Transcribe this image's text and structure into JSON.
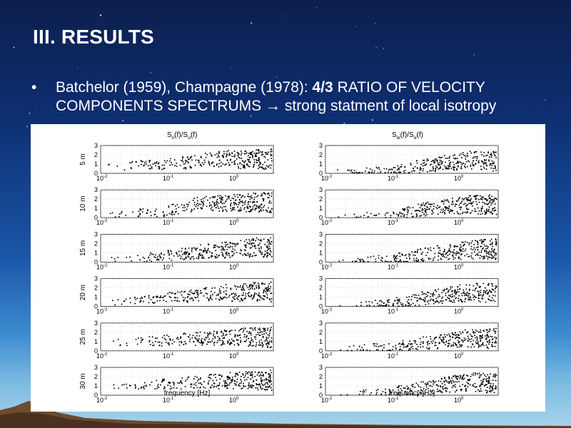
{
  "slide": {
    "title": "III. RESULTS",
    "bullet_symbol": "•",
    "bullet_part1": "Batchelor (1959), Champagne (1978): ",
    "bullet_bold": "4/3",
    "bullet_part2": " RATIO OF VELOCITY COMPONENTS  SPECTRUMS → strong statment of local isotropy"
  },
  "colors": {
    "sky_top": "#0b1f4d",
    "sky_bottom": "#a7d3ea",
    "ground": "#6e4a2e",
    "text": "#ffffff",
    "figure_bg": "#ffffff",
    "points": "#000000",
    "grid": "#c8c8c8"
  },
  "chart_data": [
    {
      "type": "scatter",
      "title_main": "S",
      "title_sub1": "v",
      "title_mid": "(f)/S",
      "title_sub2": "u",
      "title_end": "(f)",
      "xlabel": "frequency [Hz]",
      "xscale": "log",
      "xlim": [
        0.01,
        4
      ],
      "ylim": [
        0,
        3
      ],
      "y_ticks": [
        "0",
        "1",
        "2",
        "3"
      ],
      "x_tick_base": "10",
      "x_tick_exps": [
        "-2",
        "-1",
        "0"
      ],
      "grid": true,
      "rows": [
        "5 m",
        "10 m",
        "15 m",
        "20 m",
        "25 m",
        "30 m"
      ],
      "trend_note": "ratio rises from about 0.3 at 0.01 Hz toward ~1.3 (scattered 0–3) above 1 Hz",
      "series": [
        {
          "name": "5 m",
          "x": [
            0.015,
            0.02,
            0.03,
            0.05,
            0.08,
            0.1,
            0.15,
            0.2,
            0.3,
            0.5,
            0.8,
            1,
            1.5,
            2,
            3
          ],
          "y": [
            0.8,
            0.6,
            0.9,
            1.0,
            0.7,
            1.0,
            1.2,
            1.1,
            1.4,
            1.5,
            1.6,
            1.5,
            1.4,
            1.6,
            1.5
          ]
        },
        {
          "name": "10 m",
          "x": [
            0.015,
            0.02,
            0.03,
            0.05,
            0.08,
            0.1,
            0.15,
            0.2,
            0.3,
            0.5,
            0.8,
            1,
            1.5,
            2,
            3
          ],
          "y": [
            0.3,
            0.4,
            0.5,
            0.6,
            0.5,
            0.8,
            1.0,
            1.2,
            1.5,
            1.6,
            1.5,
            1.6,
            1.5,
            1.7,
            1.6
          ]
        },
        {
          "name": "15 m",
          "x": [
            0.015,
            0.02,
            0.03,
            0.05,
            0.08,
            0.1,
            0.15,
            0.2,
            0.3,
            0.5,
            0.8,
            1,
            1.5,
            2,
            3
          ],
          "y": [
            0.3,
            0.4,
            0.3,
            0.5,
            0.6,
            0.7,
            0.8,
            0.9,
            1.1,
            1.2,
            1.3,
            1.4,
            1.5,
            1.6,
            1.6
          ]
        },
        {
          "name": "20 m",
          "x": [
            0.015,
            0.02,
            0.03,
            0.05,
            0.08,
            0.1,
            0.15,
            0.2,
            0.3,
            0.5,
            0.8,
            1,
            1.5,
            2,
            3
          ],
          "y": [
            0.4,
            0.5,
            0.6,
            0.7,
            0.8,
            0.9,
            1.0,
            1.1,
            1.3,
            1.4,
            1.5,
            1.4,
            1.5,
            1.6,
            1.6
          ]
        },
        {
          "name": "25 m",
          "x": [
            0.015,
            0.02,
            0.03,
            0.05,
            0.08,
            0.1,
            0.15,
            0.2,
            0.3,
            0.5,
            0.8,
            1,
            1.5,
            2,
            3
          ],
          "y": [
            1.4,
            0.8,
            0.9,
            1.1,
            1.0,
            1.2,
            1.2,
            1.3,
            1.3,
            1.4,
            1.5,
            1.4,
            1.5,
            1.5,
            1.4
          ]
        },
        {
          "name": "30 m",
          "x": [
            0.015,
            0.02,
            0.03,
            0.05,
            0.08,
            0.1,
            0.15,
            0.2,
            0.3,
            0.5,
            0.8,
            1,
            1.5,
            2,
            3
          ],
          "y": [
            1.0,
            0.9,
            1.0,
            1.1,
            1.2,
            1.2,
            1.3,
            1.3,
            1.4,
            1.5,
            1.5,
            1.6,
            1.6,
            1.5,
            1.6
          ]
        }
      ]
    },
    {
      "type": "scatter",
      "title_main": "S",
      "title_sub1": "w",
      "title_mid": "(f)/S",
      "title_sub2": "u",
      "title_end": "(f)",
      "xlabel": "frequency [Hz]",
      "xscale": "log",
      "xlim": [
        0.01,
        4
      ],
      "ylim": [
        0,
        3
      ],
      "y_ticks": [
        "0",
        "1",
        "2",
        "3"
      ],
      "x_tick_base": "10",
      "x_tick_exps": [
        "-2",
        "-1",
        "0"
      ],
      "grid": true,
      "rows": [
        "5 m",
        "10 m",
        "15 m",
        "20 m",
        "25 m",
        "30 m"
      ],
      "trend_note": "ratio near 0.1 at low frequency rising to ~1.3 above 1 Hz",
      "series": [
        {
          "name": "5 m",
          "x": [
            0.015,
            0.02,
            0.03,
            0.05,
            0.08,
            0.1,
            0.15,
            0.2,
            0.3,
            0.5,
            0.8,
            1,
            1.5,
            2,
            3
          ],
          "y": [
            0.1,
            0.1,
            0.1,
            0.2,
            0.2,
            0.3,
            0.4,
            0.6,
            0.8,
            1.0,
            1.2,
            1.3,
            1.4,
            1.4,
            1.3
          ]
        },
        {
          "name": "10 m",
          "x": [
            0.015,
            0.02,
            0.03,
            0.05,
            0.08,
            0.1,
            0.15,
            0.2,
            0.3,
            0.5,
            0.8,
            1,
            1.5,
            2,
            3
          ],
          "y": [
            0.1,
            0.1,
            0.2,
            0.2,
            0.3,
            0.3,
            0.5,
            0.7,
            0.9,
            1.1,
            1.2,
            1.3,
            1.4,
            1.4,
            1.4
          ]
        },
        {
          "name": "15 m",
          "x": [
            0.015,
            0.02,
            0.03,
            0.05,
            0.08,
            0.1,
            0.15,
            0.2,
            0.3,
            0.5,
            0.8,
            1,
            1.5,
            2,
            3
          ],
          "y": [
            0.1,
            0.1,
            0.1,
            0.2,
            0.2,
            0.3,
            0.4,
            0.6,
            0.8,
            1.0,
            1.1,
            1.2,
            1.3,
            1.4,
            1.4
          ]
        },
        {
          "name": "20 m",
          "x": [
            0.015,
            0.02,
            0.03,
            0.05,
            0.08,
            0.1,
            0.15,
            0.2,
            0.3,
            0.5,
            0.8,
            1,
            1.5,
            2,
            3
          ],
          "y": [
            0.1,
            0.1,
            0.2,
            0.2,
            0.3,
            0.4,
            0.5,
            0.7,
            0.9,
            1.1,
            1.3,
            1.4,
            1.5,
            1.5,
            1.4
          ]
        },
        {
          "name": "25 m",
          "x": [
            0.015,
            0.02,
            0.03,
            0.05,
            0.08,
            0.1,
            0.15,
            0.2,
            0.3,
            0.5,
            0.8,
            1,
            1.5,
            2,
            3
          ],
          "y": [
            0.2,
            0.2,
            0.2,
            0.3,
            0.3,
            0.4,
            0.5,
            0.6,
            0.8,
            1.0,
            1.2,
            1.3,
            1.3,
            1.3,
            1.3
          ]
        },
        {
          "name": "30 m",
          "x": [
            0.015,
            0.02,
            0.03,
            0.05,
            0.08,
            0.1,
            0.15,
            0.2,
            0.3,
            0.5,
            0.8,
            1,
            1.5,
            2,
            3
          ],
          "y": [
            0.1,
            0.1,
            0.2,
            0.2,
            0.3,
            0.3,
            0.5,
            0.6,
            0.8,
            1.0,
            1.2,
            1.3,
            1.4,
            1.4,
            1.3
          ]
        }
      ]
    }
  ]
}
